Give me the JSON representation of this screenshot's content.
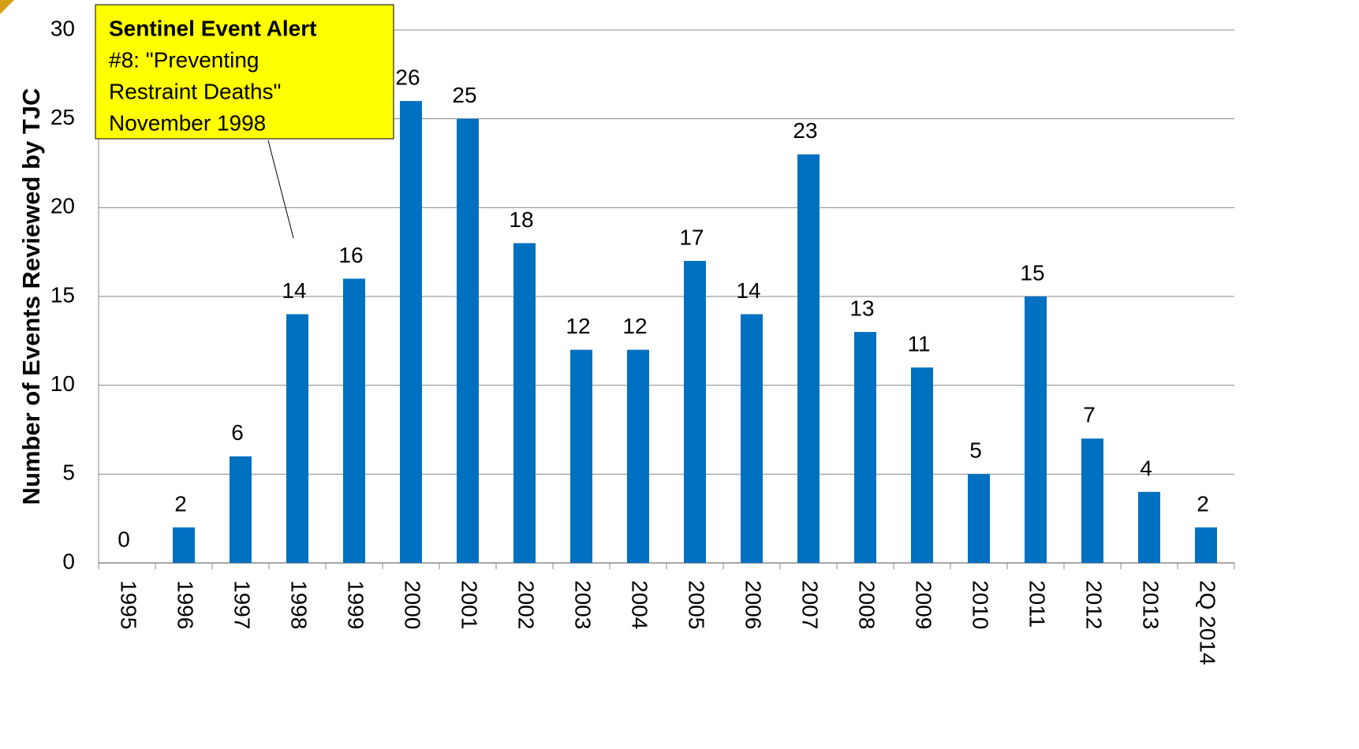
{
  "chart_data": {
    "type": "bar",
    "y_label": "Number of Events Reviewed by TJC",
    "categories": [
      "1995",
      "1996",
      "1997",
      "1998",
      "1999",
      "2000",
      "2001",
      "2002",
      "2003",
      "2004",
      "2005",
      "2006",
      "2007",
      "2008",
      "2009",
      "2010",
      "2011",
      "2012",
      "2013",
      "2Q 2014"
    ],
    "values": [
      0,
      2,
      6,
      14,
      16,
      26,
      25,
      18,
      12,
      12,
      17,
      14,
      23,
      13,
      11,
      5,
      15,
      7,
      4,
      2
    ],
    "color": "#0070c0",
    "ylim": [
      0,
      30
    ],
    "yticks": [
      0,
      5,
      10,
      15,
      20,
      25,
      30
    ],
    "grid": true,
    "annotation": [
      "Sentinel Event Alert",
      "#8: \"Preventing",
      "Restraint Deaths\"",
      "November 1998"
    ]
  }
}
